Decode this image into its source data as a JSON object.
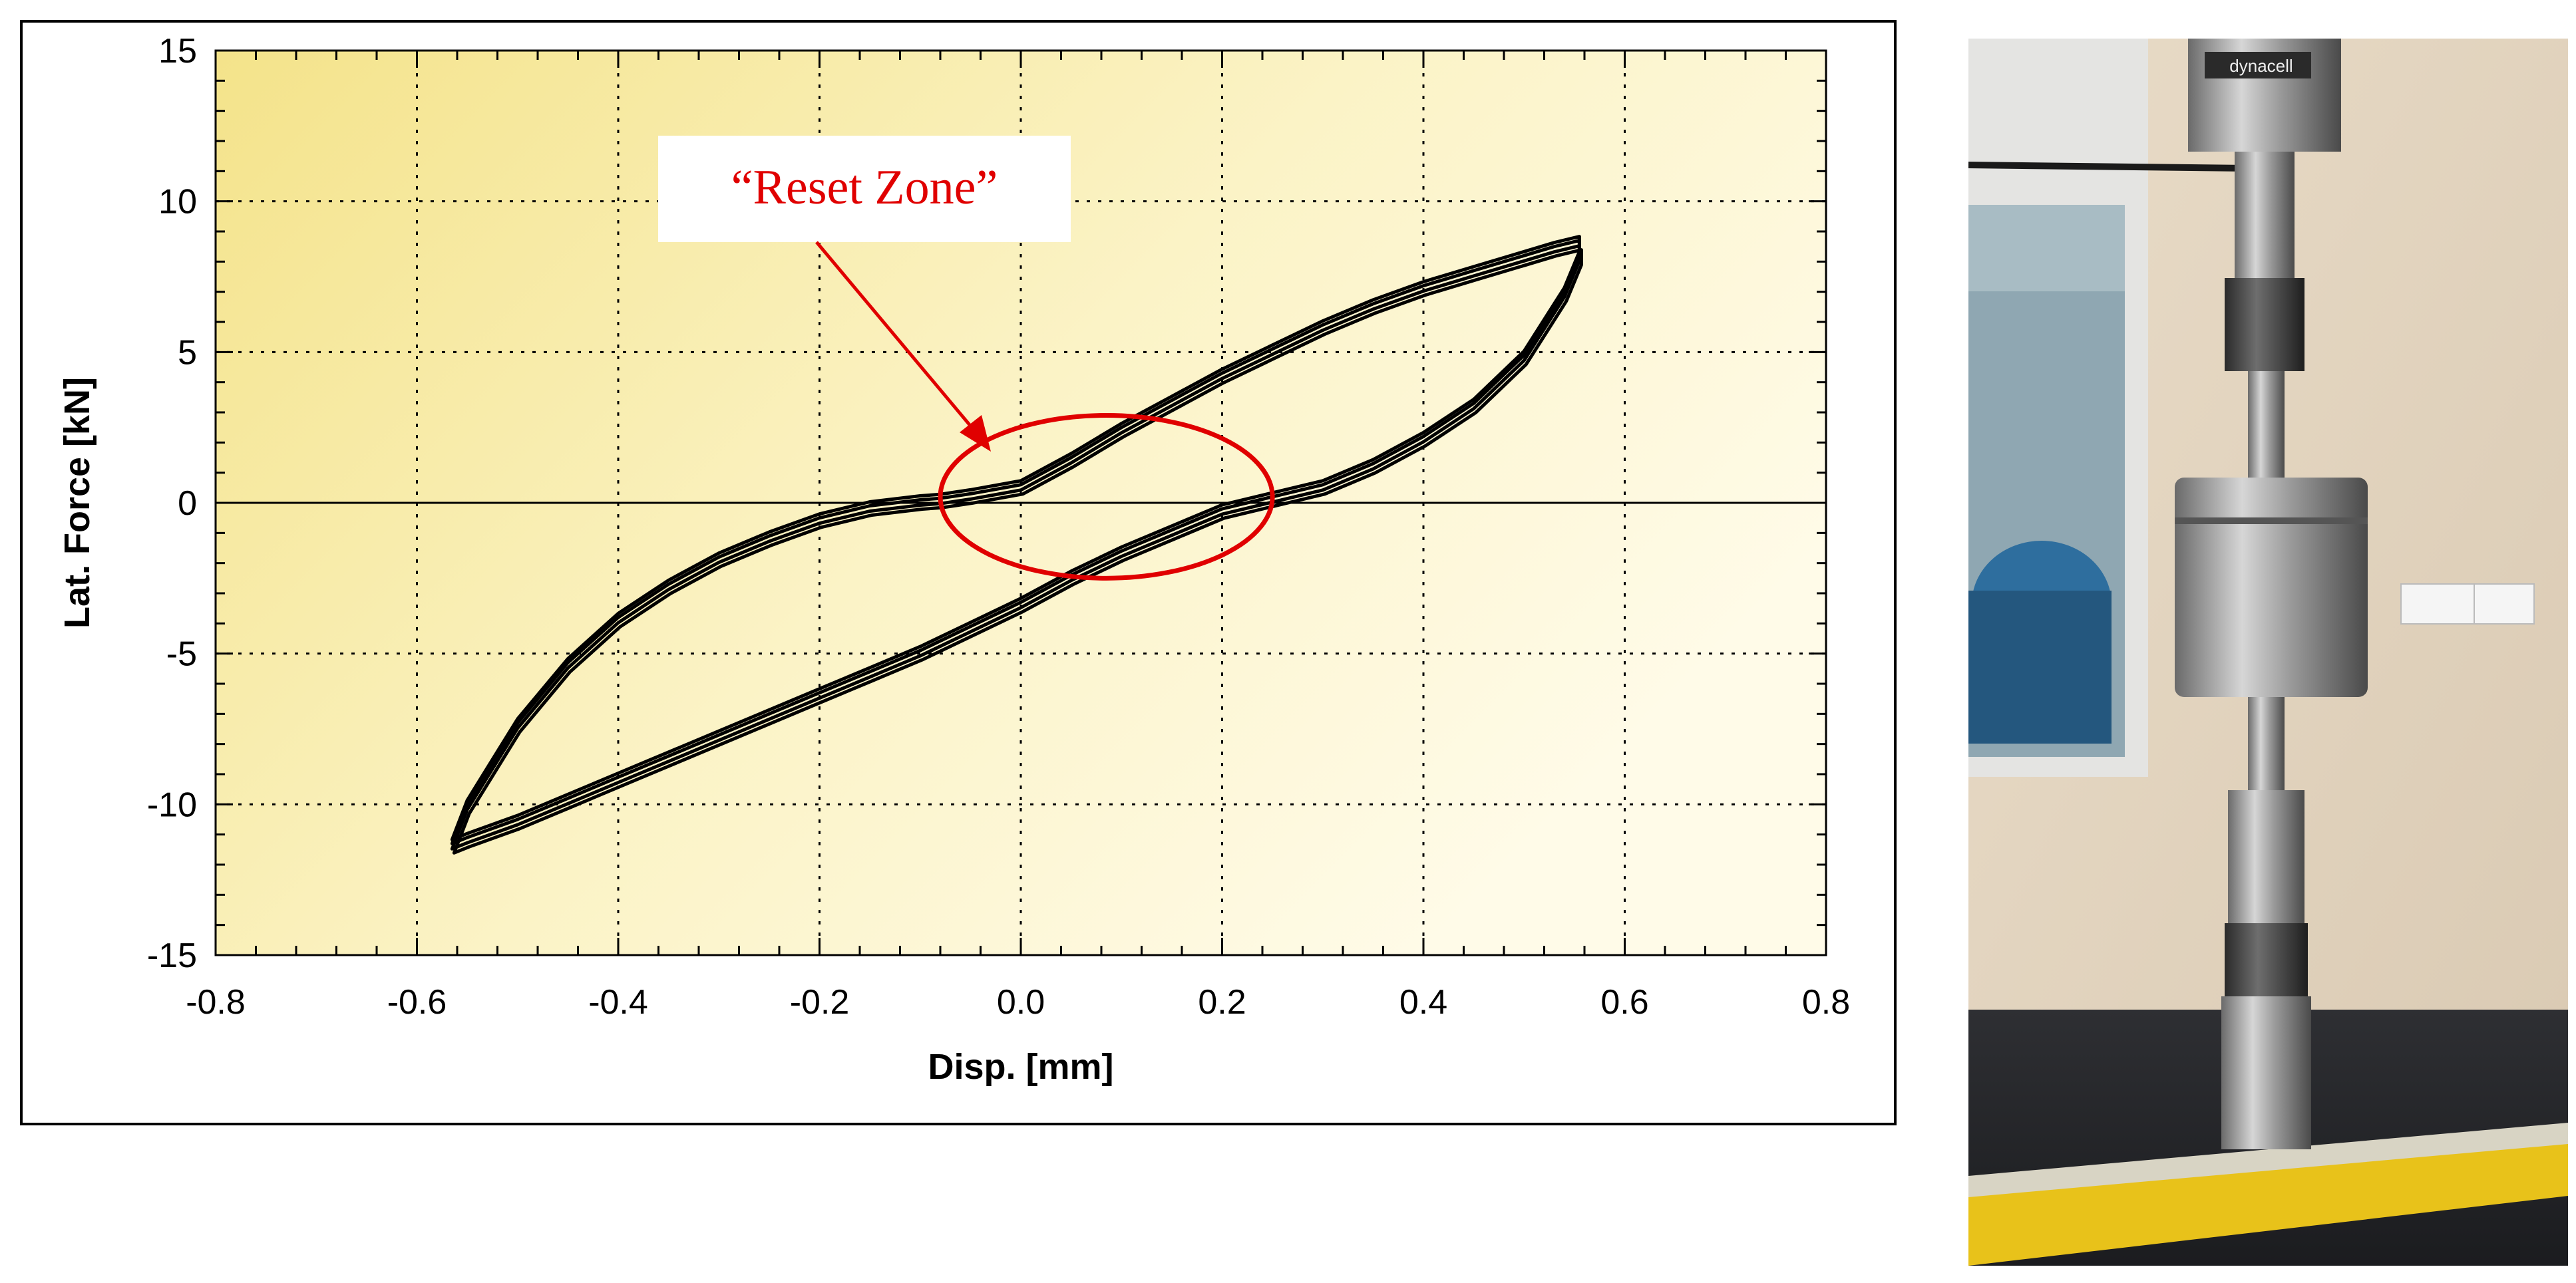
{
  "chart_data": {
    "type": "line",
    "title": "",
    "xlabel": "Disp. [mm]",
    "ylabel": "Lat. Force [kN]",
    "xlim": [
      -0.8,
      0.8
    ],
    "ylim": [
      -15,
      15
    ],
    "x_ticks": [
      -0.8,
      -0.6,
      -0.4,
      -0.2,
      0.0,
      0.2,
      0.4,
      0.6,
      0.8
    ],
    "y_ticks": [
      -15,
      -10,
      -5,
      0,
      5,
      10,
      15
    ],
    "x_tick_labels": [
      "-0.8",
      "-0.6",
      "-0.4",
      "-0.2",
      "0.0",
      "0.2",
      "0.4",
      "0.6",
      "0.8"
    ],
    "y_tick_labels": [
      "-15",
      "-10",
      "-5",
      "0",
      "5",
      "10",
      "15"
    ],
    "grid": true,
    "zero_line": true,
    "legend": "none",
    "background": "yellow-gradient",
    "series": [
      {
        "loop_upper": {
          "x": [
            -0.565,
            -0.55,
            -0.5,
            -0.45,
            -0.4,
            -0.35,
            -0.3,
            -0.25,
            -0.2,
            -0.15,
            -0.1,
            -0.08,
            -0.05,
            0.0,
            0.05,
            0.1,
            0.15,
            0.2,
            0.25,
            0.3,
            0.35,
            0.4,
            0.45,
            0.5,
            0.53,
            0.555
          ],
          "y": [
            -11.3,
            -10.0,
            -7.3,
            -5.3,
            -3.8,
            -2.7,
            -1.8,
            -1.1,
            -0.5,
            -0.1,
            0.1,
            0.15,
            0.3,
            0.6,
            1.5,
            2.5,
            3.4,
            4.3,
            5.1,
            5.9,
            6.6,
            7.2,
            7.7,
            8.2,
            8.5,
            8.7
          ]
        },
        "loop_lower": {
          "x": [
            0.555,
            0.54,
            0.5,
            0.45,
            0.4,
            0.35,
            0.3,
            0.25,
            0.2,
            0.15,
            0.1,
            0.05,
            0.0,
            -0.05,
            -0.1,
            -0.15,
            -0.2,
            -0.25,
            -0.3,
            -0.35,
            -0.4,
            -0.45,
            -0.5,
            -0.55,
            -0.565
          ],
          "y": [
            8.2,
            7.0,
            4.9,
            3.3,
            2.2,
            1.3,
            0.6,
            0.2,
            -0.2,
            -0.9,
            -1.6,
            -2.4,
            -3.3,
            -4.1,
            -4.9,
            -5.6,
            -6.3,
            -7.0,
            -7.7,
            -8.4,
            -9.1,
            -9.8,
            -10.5,
            -11.1,
            -11.3
          ]
        }
      }
    ],
    "annotations": [
      {
        "text": "“Reset Zone”",
        "color": "#e00000",
        "target_x": 0.085,
        "target_y": 0.2,
        "radius_x": 0.165,
        "radius_y": 2.7
      }
    ]
  },
  "photo": {
    "icon": "dynamic-test-machine-photo",
    "load_cell_label": "dynacell"
  },
  "colors": {
    "annotation": "#e00000",
    "curve": "#000000",
    "bg_light": "#fffbe6",
    "bg_dark": "#f5e58c"
  }
}
